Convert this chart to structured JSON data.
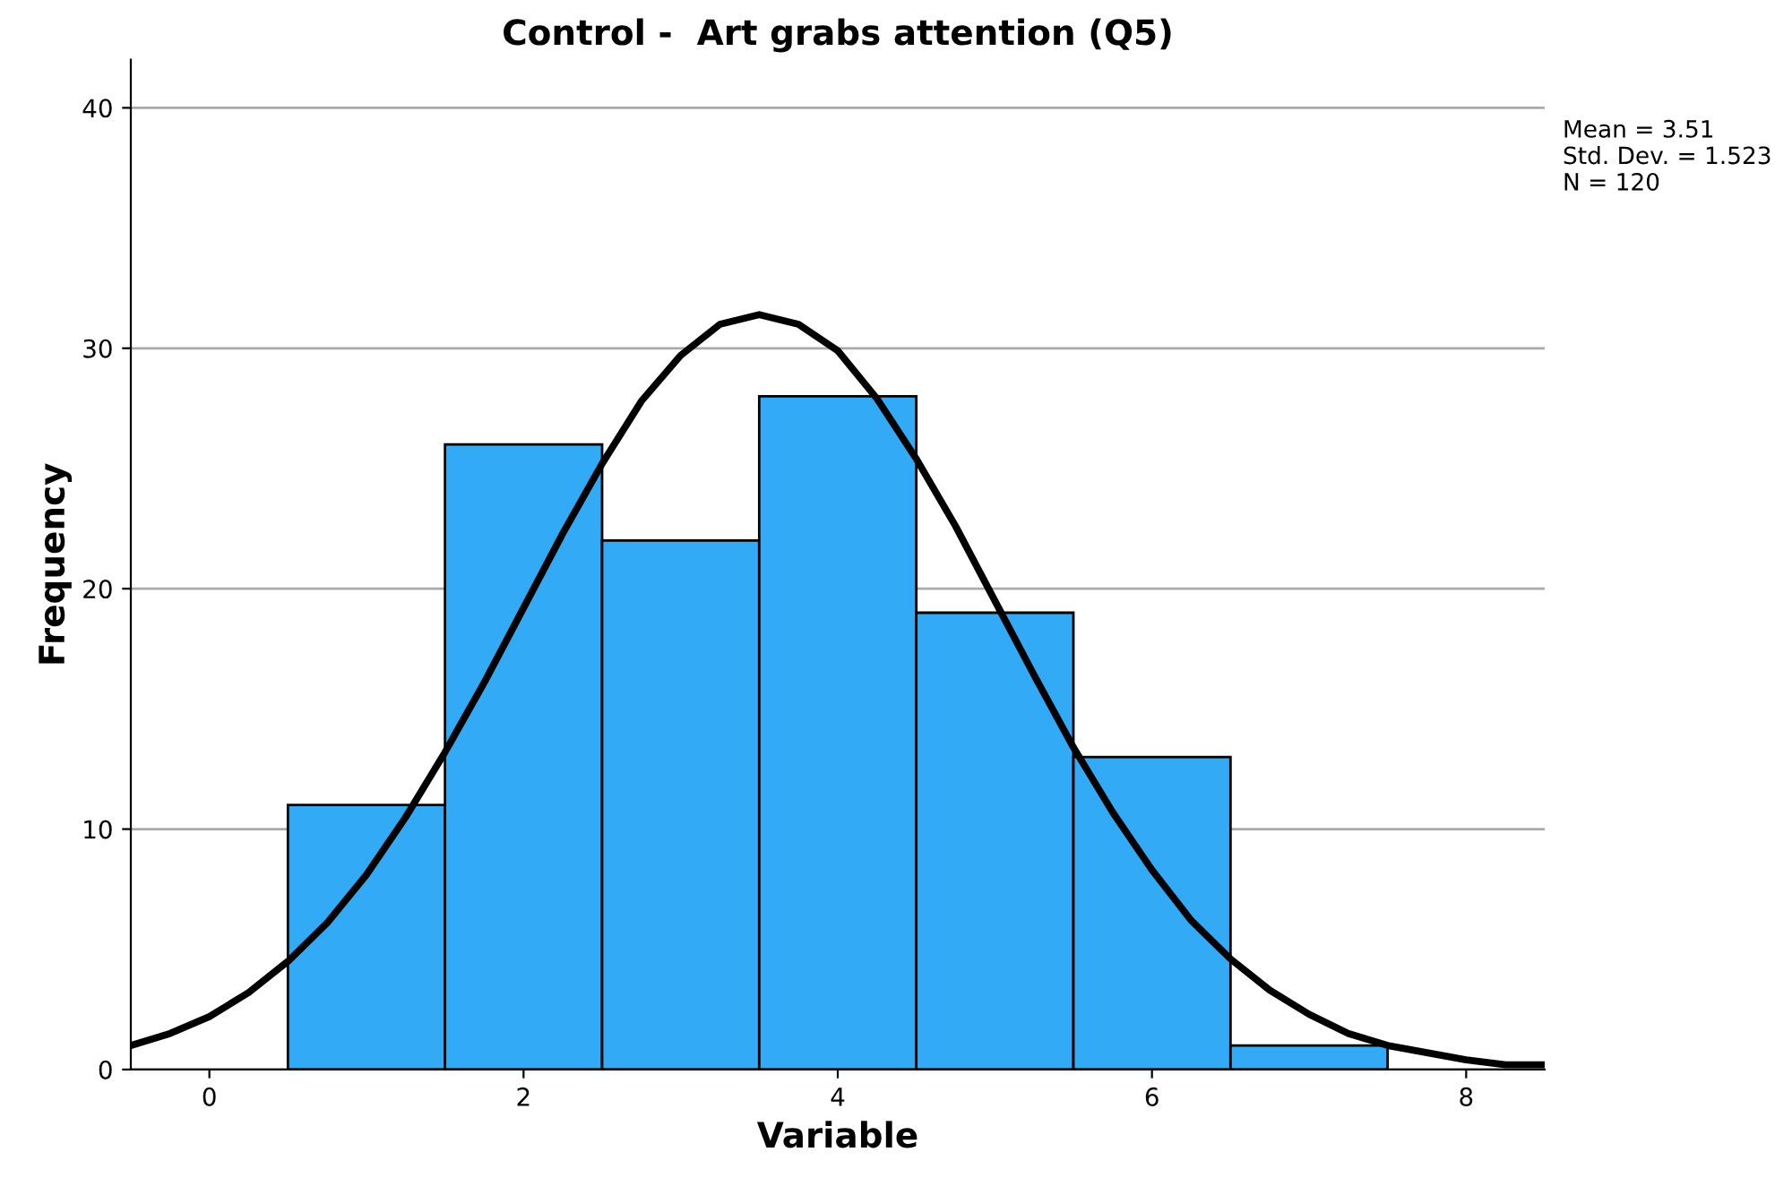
{
  "chart_data": {
    "type": "histogram",
    "title": "Control -  Art grabs attention (Q5)",
    "xlabel": "Variable",
    "ylabel": "Frequency",
    "bins": [
      0.5,
      1.5,
      2.5,
      3.5,
      4.5,
      5.5,
      6.5,
      7.5
    ],
    "series": [
      {
        "color": "#33aaf5",
        "values": [
          11,
          26,
          22,
          28,
          19,
          13,
          1
        ]
      },
      {
        "type": "line",
        "color": "#000000",
        "x": [
          -0.5,
          -0.25,
          0,
          0.25,
          0.5,
          0.75,
          1,
          1.25,
          1.5,
          1.75,
          2,
          2.25,
          2.5,
          2.75,
          3,
          3.25,
          3.5,
          3.75,
          4,
          4.25,
          4.5,
          4.75,
          5,
          5.25,
          5.5,
          5.75,
          6,
          6.25,
          6.5,
          6.75,
          7,
          7.25,
          7.5,
          7.75,
          8,
          8.25,
          8.5
        ],
        "values": [
          1.0,
          1.5,
          2.2,
          3.2,
          4.5,
          6.1,
          8.1,
          10.5,
          13.2,
          16.1,
          19.2,
          22.3,
          25.2,
          27.8,
          29.7,
          31.0,
          31.4,
          31.0,
          29.9,
          27.9,
          25.4,
          22.6,
          19.5,
          16.4,
          13.4,
          10.7,
          8.3,
          6.2,
          4.6,
          3.3,
          2.3,
          1.5,
          1.0,
          0.7,
          0.4,
          0.2,
          0.2
        ]
      }
    ],
    "xlim": [
      -0.5,
      8.5
    ],
    "xticks": [
      0,
      2,
      4,
      6,
      8
    ],
    "ylim": [
      0,
      42
    ],
    "yticks": [
      0,
      10,
      20,
      30,
      40
    ],
    "grid": "y",
    "line_style": "solid",
    "annotations": [
      "Mean = 3.51",
      "Std. Dev. = 1.523",
      "N = 120"
    ]
  }
}
